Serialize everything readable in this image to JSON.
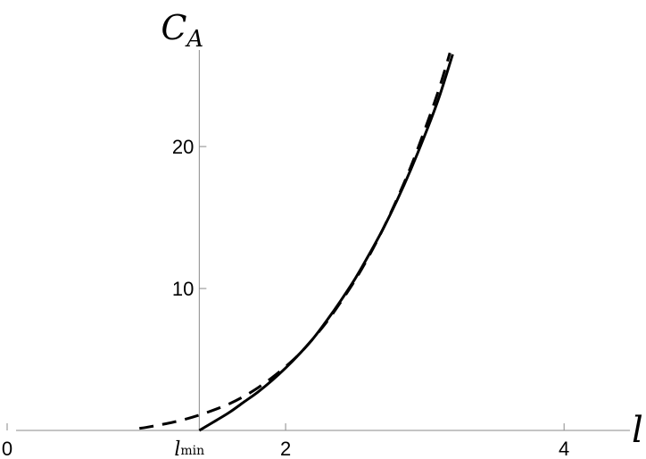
{
  "chart_data": {
    "type": "line",
    "xlabel": "l",
    "ylabel_main": "C",
    "ylabel_sub": "A",
    "xlim": [
      0,
      4.55
    ],
    "ylim": [
      -0.5,
      26.8
    ],
    "x_axis_at_y": 0,
    "y_axis_at_x": 1.38,
    "grid": false,
    "x_ticks": [
      {
        "value": 0,
        "label": "0"
      },
      {
        "value": 2,
        "label": "2"
      },
      {
        "value": 4,
        "label": "4"
      }
    ],
    "y_ticks": [
      {
        "value": 10,
        "label": "10"
      },
      {
        "value": 20,
        "label": "20"
      }
    ],
    "annotation": {
      "x": 1.38,
      "main": "l",
      "sub": "min"
    },
    "series": [
      {
        "style": "solid",
        "x": [
          1.38,
          1.5,
          1.6,
          1.7,
          1.8,
          1.9,
          2.0,
          2.1,
          2.2,
          2.3,
          2.4,
          2.5,
          2.6,
          2.7,
          2.8,
          2.9,
          3.0,
          3.1,
          3.2
        ],
        "y": [
          0,
          0.7,
          1.3,
          2.0,
          2.7,
          3.5,
          4.4,
          5.4,
          6.5,
          7.8,
          9.2,
          10.7,
          12.4,
          14.2,
          16.2,
          18.4,
          20.8,
          23.4,
          26.5
        ]
      },
      {
        "style": "dashed",
        "x": [
          0.95,
          1.0,
          1.1,
          1.2,
          1.3,
          1.4,
          1.5,
          1.6,
          1.7,
          1.8,
          1.9,
          2.0,
          2.1,
          2.2,
          2.3,
          2.4,
          2.5,
          2.6,
          2.7,
          2.8,
          2.9,
          3.0,
          3.1,
          3.18
        ],
        "y": [
          0.15,
          0.22,
          0.4,
          0.6,
          0.85,
          1.15,
          1.5,
          1.9,
          2.4,
          3.0,
          3.7,
          4.5,
          5.4,
          6.5,
          7.7,
          9.1,
          10.6,
          12.3,
          14.2,
          16.3,
          18.6,
          21.2,
          24.0,
          26.6
        ]
      }
    ]
  }
}
